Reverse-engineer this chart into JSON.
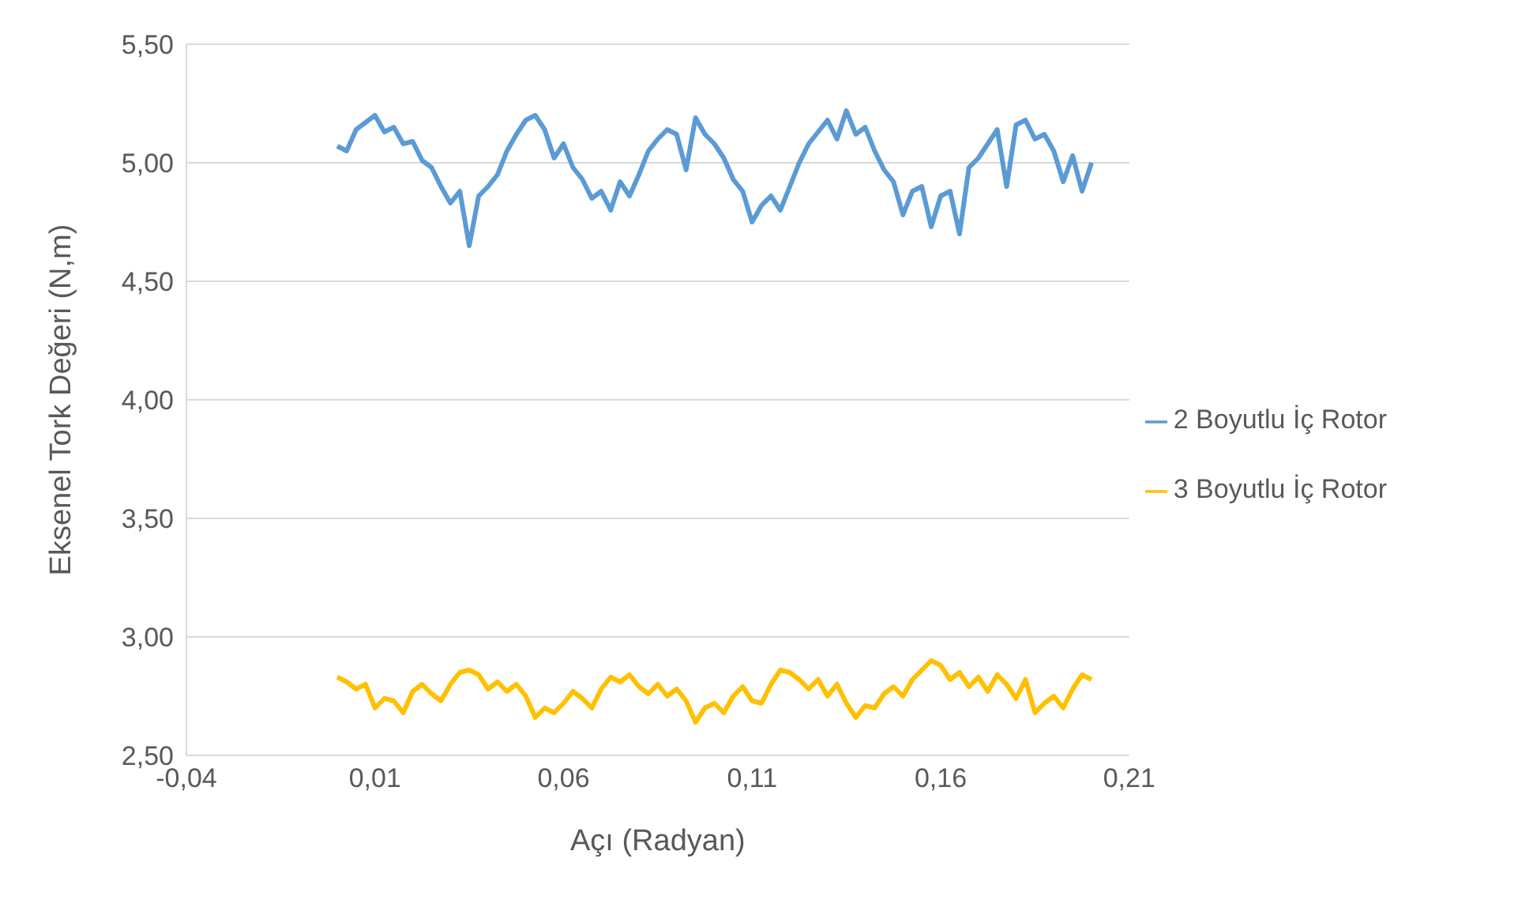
{
  "chart_data": {
    "type": "line",
    "xlabel": "Açı (Radyan)",
    "ylabel": "Eksenel Tork Değeri (N,m)",
    "x": [
      0,
      0.0025,
      0.005,
      0.0075,
      0.01,
      0.0125,
      0.015,
      0.0175,
      0.02,
      0.0225,
      0.025,
      0.0275,
      0.03,
      0.0325,
      0.035,
      0.0375,
      0.04,
      0.0425,
      0.045,
      0.0475,
      0.05,
      0.0525,
      0.055,
      0.0575,
      0.06,
      0.0625,
      0.065,
      0.0675,
      0.07,
      0.0725,
      0.075,
      0.0775,
      0.08,
      0.0825,
      0.085,
      0.0875,
      0.09,
      0.0925,
      0.095,
      0.0975,
      0.1,
      0.1025,
      0.105,
      0.1075,
      0.11,
      0.1125,
      0.115,
      0.1175,
      0.12,
      0.1225,
      0.125,
      0.1275,
      0.13,
      0.1325,
      0.135,
      0.1375,
      0.14,
      0.1425,
      0.145,
      0.1475,
      0.15,
      0.1525,
      0.155,
      0.1575,
      0.16,
      0.1625,
      0.165,
      0.1675,
      0.17,
      0.1725,
      0.175,
      0.1775,
      0.18,
      0.1825,
      0.185,
      0.1875,
      0.19,
      0.1925,
      0.195,
      0.1975,
      0.2
    ],
    "series": [
      {
        "name": "2 Boyutlu İç Rotor",
        "color": "#5b9bd5",
        "values": [
          5.07,
          5.05,
          5.14,
          5.17,
          5.2,
          5.13,
          5.15,
          5.08,
          5.09,
          5.01,
          4.98,
          4.9,
          4.83,
          4.88,
          4.65,
          4.86,
          4.9,
          4.95,
          5.05,
          5.12,
          5.18,
          5.2,
          5.14,
          5.02,
          5.08,
          4.98,
          4.93,
          4.85,
          4.88,
          4.8,
          4.92,
          4.86,
          4.95,
          5.05,
          5.1,
          5.14,
          5.12,
          4.97,
          5.19,
          5.12,
          5.08,
          5.02,
          4.93,
          4.88,
          4.75,
          4.82,
          4.86,
          4.8,
          4.9,
          5,
          5.08,
          5.13,
          5.18,
          5.1,
          5.22,
          5.12,
          5.15,
          5.05,
          4.97,
          4.92,
          4.78,
          4.88,
          4.9,
          4.73,
          4.86,
          4.88,
          4.7,
          4.98,
          5.02,
          5.08,
          5.14,
          4.9,
          5.16,
          5.18,
          5.1,
          5.12,
          5.05,
          4.92,
          5.03,
          4.88,
          5
        ]
      },
      {
        "name": "3 Boyutlu İç Rotor",
        "color": "#ffc000",
        "values": [
          2.83,
          2.81,
          2.78,
          2.8,
          2.7,
          2.74,
          2.73,
          2.68,
          2.77,
          2.8,
          2.76,
          2.73,
          2.8,
          2.85,
          2.86,
          2.84,
          2.78,
          2.81,
          2.77,
          2.8,
          2.75,
          2.66,
          2.7,
          2.68,
          2.72,
          2.77,
          2.74,
          2.7,
          2.78,
          2.83,
          2.81,
          2.84,
          2.79,
          2.76,
          2.8,
          2.75,
          2.78,
          2.73,
          2.64,
          2.7,
          2.72,
          2.68,
          2.75,
          2.79,
          2.73,
          2.72,
          2.8,
          2.86,
          2.85,
          2.82,
          2.78,
          2.82,
          2.75,
          2.8,
          2.72,
          2.66,
          2.71,
          2.7,
          2.76,
          2.79,
          2.75,
          2.82,
          2.86,
          2.9,
          2.88,
          2.82,
          2.85,
          2.79,
          2.83,
          2.77,
          2.84,
          2.8,
          2.74,
          2.82,
          2.68,
          2.72,
          2.75,
          2.7,
          2.78,
          2.84,
          2.82
        ]
      }
    ],
    "xlim": [
      -0.04,
      0.21
    ],
    "xticks": [
      {
        "value": -0.04,
        "label": "-0,04"
      },
      {
        "value": 0.01,
        "label": "0,01"
      },
      {
        "value": 0.06,
        "label": "0,06"
      },
      {
        "value": 0.11,
        "label": "0,11"
      },
      {
        "value": 0.16,
        "label": "0,16"
      },
      {
        "value": 0.21,
        "label": "0,21"
      }
    ],
    "ylim": [
      2.5,
      5.5
    ],
    "yticks": [
      {
        "value": 2.5,
        "label": "2,50"
      },
      {
        "value": 3,
        "label": "3,00"
      },
      {
        "value": 3.5,
        "label": "3,50"
      },
      {
        "value": 4,
        "label": "4,00"
      },
      {
        "value": 4.5,
        "label": "4,50"
      },
      {
        "value": 5,
        "label": "5,00"
      },
      {
        "value": 5.5,
        "label": "5,50"
      }
    ],
    "grid": "y",
    "legend": "right",
    "marker": "none",
    "line_style": "solid"
  }
}
